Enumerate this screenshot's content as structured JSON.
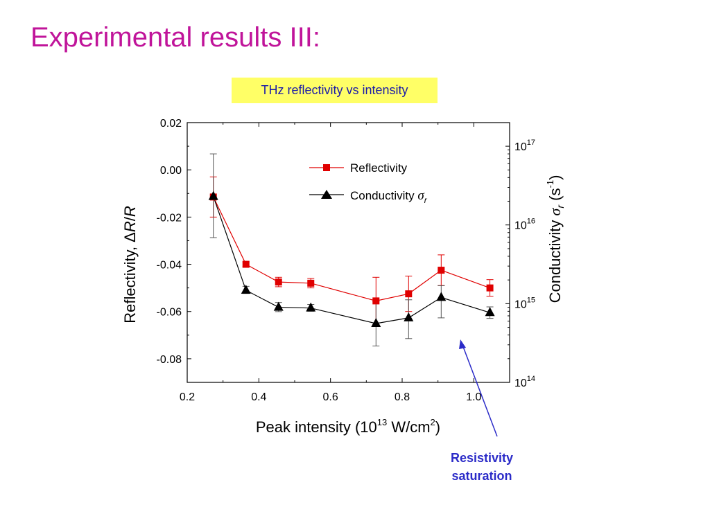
{
  "slide": {
    "title": "Experimental results III:"
  },
  "annotation": {
    "line1": "Resistivity",
    "line2": "saturation"
  },
  "chart_data": {
    "type": "line",
    "title": "THz reflectivity vs intensity",
    "xlabel": {
      "main": "Peak intensity (10",
      "sup1": "13",
      "mid": " W/cm",
      "sup2": "2",
      "end": ")"
    },
    "ylabel": {
      "prefix": "Reflectivity, ",
      "delta": "Δ",
      "r1": "R",
      "slash": "/",
      "r2": "R"
    },
    "y2label": {
      "main": "Conductivity ",
      "sigma": "σ",
      "sub": "r",
      "unit": " (s",
      "sup": "-1",
      "end": ")"
    },
    "xlim": [
      0.2,
      1.1
    ],
    "ylim": [
      -0.09,
      0.02
    ],
    "y2lim_log10": [
      14,
      17.3
    ],
    "x_ticks": [
      0.2,
      0.4,
      0.6,
      0.8,
      1.0
    ],
    "x_tick_labels": [
      "0.2",
      "0.4",
      "0.6",
      "0.8",
      "1.0"
    ],
    "y_ticks": [
      0.02,
      0.0,
      -0.02,
      -0.04,
      -0.06,
      -0.08
    ],
    "y_tick_labels": [
      "0.02",
      "0.00",
      "-0.02",
      "-0.04",
      "-0.06",
      "-0.08"
    ],
    "y2_ticks": [
      {
        "base": "10",
        "exp": "17",
        "log": 17
      },
      {
        "base": "10",
        "exp": "16",
        "log": 16
      },
      {
        "base": "10",
        "exp": "15",
        "log": 15
      },
      {
        "base": "10",
        "exp": "14",
        "log": 14
      }
    ],
    "grid": false,
    "legend_position": "top-right",
    "series": [
      {
        "name": "Reflectivity",
        "axis": "left",
        "color": "#e00000",
        "marker": "square",
        "x": [
          0.273,
          0.364,
          0.455,
          0.545,
          0.727,
          0.818,
          0.909,
          1.045
        ],
        "y": [
          -0.0115,
          -0.04,
          -0.0475,
          -0.048,
          -0.0555,
          -0.0525,
          -0.0425,
          -0.05
        ],
        "err": [
          0.0085,
          0.001,
          0.002,
          0.002,
          0.01,
          0.0075,
          0.0065,
          0.0035
        ]
      },
      {
        "name": "Conductivity σr",
        "axis": "right",
        "color": "#000000",
        "marker": "triangle",
        "x": [
          0.273,
          0.364,
          0.455,
          0.545,
          0.727,
          0.818,
          0.909,
          1.045
        ],
        "y": [
          2.3e+16,
          1480000000000000.0,
          900000000000000.0,
          880000000000000.0,
          560000000000000.0,
          660000000000000.0,
          1200000000000000.0,
          770000000000000.0
        ],
        "err_low": [
          1.61e+16,
          133000000000000.0,
          108000000000000.0,
          79000000000000.0,
          270000000000000.0,
          300000000000000.0,
          540000000000000.0,
          120000000000000.0
        ],
        "err_high": [
          5.7e+16,
          180000000000000.0,
          135000000000000.0,
          97000000000000.0,
          500000000000000.0,
          460000000000000.0,
          490000000000000.0,
          140000000000000.0
        ]
      }
    ],
    "legend": [
      {
        "label": "Reflectivity",
        "sigma": ""
      },
      {
        "label": "Conductivity ",
        "sigma": "σ",
        "sub": "r"
      }
    ]
  }
}
